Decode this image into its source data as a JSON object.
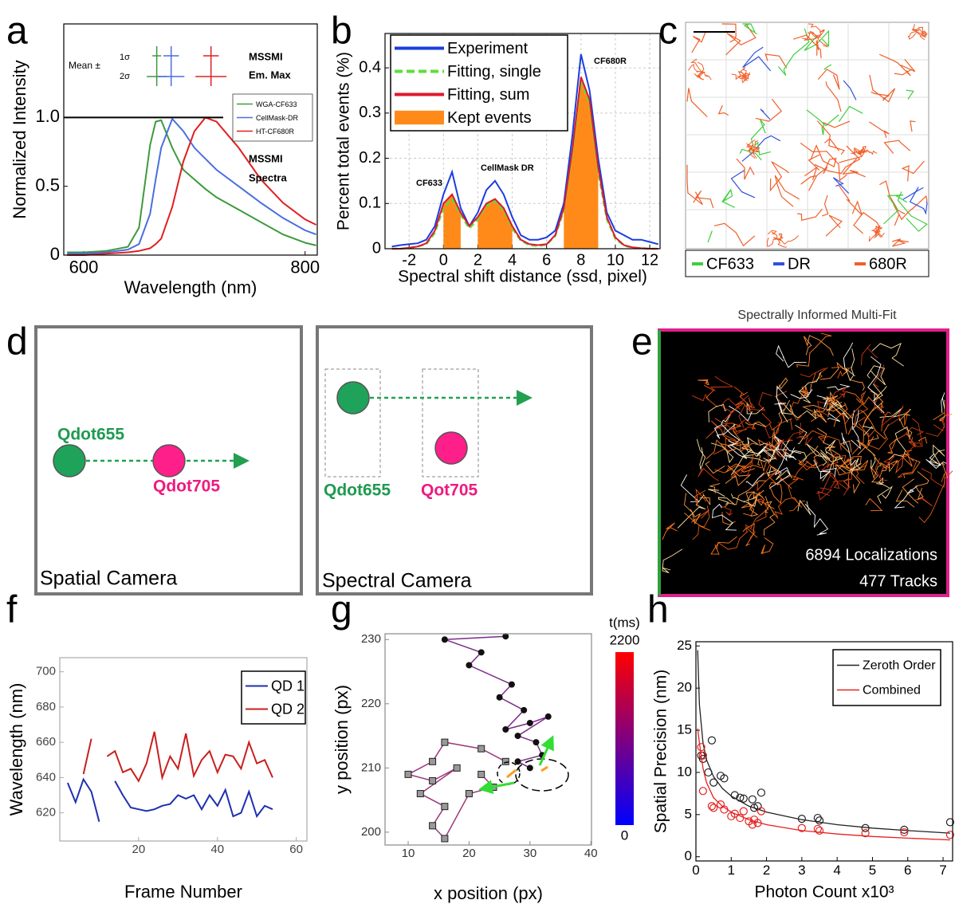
{
  "panel_labels": [
    "a",
    "b",
    "c",
    "d",
    "e",
    "f",
    "g",
    "h"
  ],
  "chart_data": [
    {
      "type": "line",
      "x_label": "Wavelength (nm)",
      "y_label": "Normalized Intensity",
      "xlim": [
        582,
        811
      ],
      "ylim": [
        0,
        1.68
      ],
      "xticks": [
        600,
        800
      ],
      "yticks": [
        0,
        0.5,
        {
          "value": 1,
          "label": "1.0"
        }
      ],
      "reference_line": 1,
      "annotations": [
        "Mean ±",
        "1σ",
        "2σ",
        "MSSMI",
        "Em. Max",
        "MSSMI",
        "Spectra"
      ],
      "x": [
        585,
        600,
        620,
        640,
        650,
        660,
        665,
        670,
        680,
        690,
        700,
        710,
        720,
        740,
        760,
        780,
        800,
        810
      ],
      "series": [
        {
          "name": "WGA-CF633",
          "color": "#3d9a3d",
          "em_max": 666,
          "em_max_1sigma": 4,
          "em_max_2sigma": 9,
          "values": [
            0.02,
            0.02,
            0.03,
            0.06,
            0.2,
            0.8,
            0.97,
            0.98,
            0.78,
            0.62,
            0.55,
            0.48,
            0.42,
            0.33,
            0.24,
            0.15,
            0.09,
            0.07
          ]
        },
        {
          "name": "CellMask-DR",
          "color": "#4a6ee0",
          "em_max": 679,
          "em_max_1sigma": 7,
          "em_max_2sigma": 12,
          "values": [
            0.01,
            0.01,
            0.02,
            0.04,
            0.08,
            0.3,
            0.55,
            0.78,
            0.99,
            0.9,
            0.78,
            0.7,
            0.62,
            0.5,
            0.38,
            0.27,
            0.18,
            0.15
          ]
        },
        {
          "name": "HT-CF680R",
          "color": "#e02020",
          "em_max": 715,
          "em_max_1sigma": 7,
          "em_max_2sigma": 14,
          "values": [
            0,
            0,
            0.01,
            0.02,
            0.03,
            0.05,
            0.08,
            0.12,
            0.35,
            0.68,
            0.9,
            1.0,
            0.97,
            0.78,
            0.55,
            0.38,
            0.26,
            0.22
          ]
        }
      ]
    },
    {
      "type": "line",
      "x_label": "Spectral shift distance (ssd, pixel)",
      "y_label": "Percent total events (%)",
      "xlim": [
        -3.4,
        12.6
      ],
      "ylim": [
        0,
        0.476
      ],
      "xticks": [
        -2,
        0,
        2,
        4,
        6,
        8,
        10,
        12
      ],
      "yticks": [
        0,
        0.1,
        0.2,
        0.3,
        0.4
      ],
      "grid": true,
      "annotations": [
        "CF633",
        "CellMask DR",
        "CF680R"
      ],
      "x": [
        -3,
        -2.5,
        -2,
        -1.5,
        -1,
        -0.5,
        0,
        0.5,
        1,
        1.5,
        2,
        2.5,
        3,
        3.5,
        4,
        4.5,
        5,
        5.5,
        6,
        6.5,
        7,
        7.5,
        8,
        8.5,
        9,
        9.5,
        10,
        10.5,
        11,
        11.5,
        12,
        12.5
      ],
      "series": [
        {
          "name": "Experiment",
          "color": "#1a3de0",
          "style": "solid",
          "values": [
            0.005,
            0.008,
            0.01,
            0.012,
            0.02,
            0.05,
            0.12,
            0.17,
            0.09,
            0.05,
            0.08,
            0.13,
            0.15,
            0.12,
            0.07,
            0.03,
            0.02,
            0.02,
            0.025,
            0.04,
            0.1,
            0.25,
            0.43,
            0.35,
            0.2,
            0.08,
            0.04,
            0.03,
            0.02,
            0.02,
            0.015,
            0.01
          ]
        },
        {
          "name": "Fitting, single",
          "color": "#5fdc3c",
          "style": "dashed",
          "values": [
            0,
            0,
            0.002,
            0.005,
            0.01,
            0.035,
            0.09,
            0.11,
            0.075,
            0.045,
            0.065,
            0.095,
            0.105,
            0.085,
            0.045,
            0.018,
            0.008,
            0.006,
            0.009,
            0.028,
            0.085,
            0.21,
            0.37,
            0.32,
            0.17,
            0.065,
            0.022,
            0.007,
            0.002,
            0.001,
            0,
            0
          ]
        },
        {
          "name": "Fitting, sum",
          "color": "#e0182c",
          "style": "solid",
          "values": [
            0,
            0,
            0.002,
            0.005,
            0.012,
            0.04,
            0.1,
            0.12,
            0.08,
            0.05,
            0.07,
            0.1,
            0.11,
            0.09,
            0.05,
            0.02,
            0.01,
            0.008,
            0.01,
            0.03,
            0.09,
            0.22,
            0.38,
            0.33,
            0.18,
            0.07,
            0.025,
            0.008,
            0.003,
            0.001,
            0,
            0
          ]
        },
        {
          "name": "Kept events",
          "color": "#ff8a1a",
          "style": "area",
          "values": [
            null,
            null,
            null,
            null,
            null,
            null,
            0.1,
            0.12,
            0.08,
            null,
            0.07,
            0.1,
            0.11,
            0.09,
            0.05,
            null,
            null,
            null,
            null,
            null,
            0.09,
            0.22,
            0.38,
            0.33,
            0.18,
            null,
            null,
            null,
            null,
            null,
            null,
            null
          ]
        }
      ]
    },
    {
      "type": "line",
      "x_label": "Frame Number",
      "y_label": "Wavelength (nm)",
      "xlim": [
        0,
        62.7
      ],
      "ylim": [
        604,
        708
      ],
      "xticks": [
        20,
        40,
        60
      ],
      "yticks": [
        620,
        640,
        660,
        680,
        700
      ],
      "x": [
        2,
        4,
        6,
        8,
        10,
        12,
        14,
        16,
        18,
        20,
        22,
        24,
        26,
        28,
        30,
        32,
        34,
        36,
        38,
        40,
        42,
        44,
        46,
        48,
        50,
        52,
        54
      ],
      "series": [
        {
          "name": "QD 1",
          "color": "#1f2fb0",
          "style": "solid",
          "values": [
            637,
            626,
            639,
            632,
            615,
            null,
            638,
            630,
            623,
            622,
            621,
            622,
            624,
            625,
            630,
            628,
            630,
            622,
            630,
            624,
            633,
            618,
            620,
            632,
            618,
            624,
            622
          ]
        },
        {
          "name": "QD 2",
          "color": "#c8201e",
          "style": "solid",
          "values": [
            null,
            null,
            642,
            662,
            null,
            652,
            655,
            643,
            645,
            638,
            648,
            666,
            640,
            652,
            645,
            665,
            641,
            650,
            655,
            643,
            653,
            652,
            645,
            660,
            648,
            650,
            640
          ]
        }
      ]
    },
    {
      "type": "scatter",
      "x_label": "x position (px)",
      "y_label": "y position (px)",
      "xlim": [
        6.2,
        40.1
      ],
      "ylim": [
        198,
        230.9
      ],
      "xticks": [
        10,
        20,
        30,
        40
      ],
      "yticks": [
        200,
        210,
        220,
        230
      ],
      "colorbar": {
        "label": "t(ms)",
        "lim": [
          0,
          2200
        ],
        "ticks": [
          0,
          2200
        ],
        "colors": [
          "#0000ff",
          "#ff0000"
        ]
      },
      "series": [
        {
          "marker": "circle",
          "color": "#7a2d8a",
          "marker_color": "#111111",
          "connected": true,
          "x": [
            26,
            16,
            22,
            20,
            27,
            25,
            29,
            26,
            30,
            33,
            28,
            31,
            32,
            28,
            30
          ],
          "values": [
            230.5,
            230,
            228,
            226,
            223,
            221,
            219,
            216,
            217,
            218,
            215,
            214,
            212,
            211,
            210
          ]
        },
        {
          "marker": "square",
          "color": "#9a3a7a",
          "marker_color": "#999999",
          "connected": true,
          "x": [
            26,
            22,
            16,
            14,
            10,
            14,
            18,
            12,
            16,
            14,
            16,
            20,
            24,
            22
          ],
          "values": [
            211,
            213,
            214,
            211,
            209,
            208,
            210,
            206,
            204,
            201,
            199,
            206,
            207,
            209
          ]
        }
      ]
    },
    {
      "type": "scatter",
      "x_label": "Photon Count x10³",
      "y_label": "Spatial Precision (nm)",
      "xlim": [
        0,
        7.27
      ],
      "ylim": [
        -0.5,
        25.5
      ],
      "xticks": [
        0,
        1,
        2,
        3,
        4,
        5,
        6,
        7
      ],
      "yticks": [
        0,
        5,
        10,
        15,
        20,
        25
      ],
      "series": [
        {
          "name": "Zeroth Order",
          "color": "#222222",
          "marker": "open-circle",
          "x": [
            0.15,
            0.2,
            0.35,
            0.45,
            0.5,
            0.7,
            0.8,
            1.1,
            1.25,
            1.35,
            1.6,
            1.65,
            1.75,
            1.85,
            3.0,
            3.45,
            3.5,
            4.8,
            5.9,
            7.2
          ],
          "values": [
            12,
            11.6,
            10,
            13.8,
            8.8,
            9.6,
            9.3,
            7.3,
            7,
            6.9,
            6.8,
            5.8,
            6,
            7.6,
            4.5,
            4.6,
            4.3,
            3.4,
            3.2,
            4.1
          ],
          "fit_x": [
            0.05,
            0.1,
            0.2,
            0.3,
            0.5,
            0.75,
            1,
            1.5,
            2,
            3,
            4,
            5,
            6,
            7.2
          ],
          "fit_values": [
            24.5,
            18,
            13.5,
            11.5,
            9.5,
            8.1,
            7.2,
            6,
            5.3,
            4.4,
            3.8,
            3.4,
            3.1,
            2.8
          ]
        },
        {
          "name": "Combined",
          "color": "#e82020",
          "marker": "open-circle",
          "x": [
            0.15,
            0.2,
            0.2,
            0.45,
            0.5,
            0.7,
            0.8,
            1.0,
            1.1,
            1.25,
            1.35,
            1.5,
            1.6,
            1.65,
            1.75,
            1.85,
            3.0,
            3.45,
            3.5,
            4.8,
            5.9,
            7.2
          ],
          "values": [
            13,
            12,
            7.8,
            6,
            5.8,
            6.2,
            5.6,
            4.8,
            5.1,
            4.6,
            5.4,
            4.2,
            3.8,
            4.4,
            4.0,
            5.4,
            3.4,
            3.3,
            3.1,
            2.8,
            2.9,
            2.6
          ],
          "fit_x": [
            0.05,
            0.1,
            0.2,
            0.3,
            0.5,
            0.75,
            1,
            1.5,
            2,
            3,
            4,
            5,
            6,
            7.2
          ],
          "fit_values": [
            15.2,
            13.5,
            10.5,
            8.8,
            7,
            6,
            5.3,
            4.4,
            3.8,
            3.1,
            2.7,
            2.4,
            2.2,
            2.0
          ]
        }
      ]
    }
  ],
  "panel_c": {
    "legend": [
      {
        "name": "CF633",
        "color": "#3fce3f"
      },
      {
        "name": "DR",
        "color": "#3050e0"
      },
      {
        "name": "680R",
        "color": "#f0602a"
      }
    ]
  },
  "panel_d": {
    "left": {
      "labels": [
        "Qdot655",
        "Qdot705"
      ],
      "caption": "Spatial Camera"
    },
    "right": {
      "labels": [
        "Qdot655",
        "Qot705"
      ],
      "caption": "Spectral Camera"
    }
  },
  "panel_e": {
    "title": "Spectrally Informed Multi-Fit",
    "stats": [
      "6894 Localizations",
      "477 Tracks"
    ]
  }
}
